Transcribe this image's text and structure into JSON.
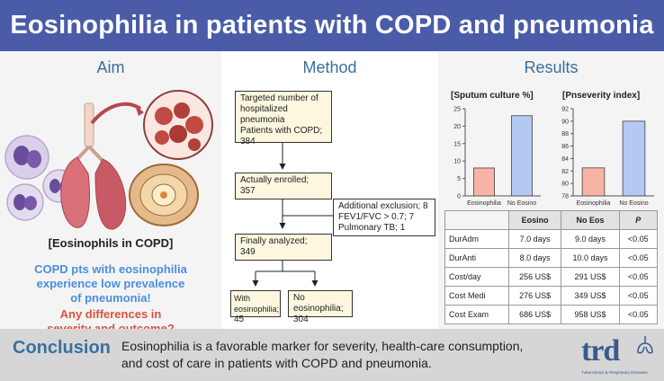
{
  "header": {
    "title": "Eosinophilia in patients with COPD and pneumonia"
  },
  "aim": {
    "title": "Aim",
    "image_label": "[Eosinophils in COPD]",
    "statement": [
      "COPD pts with eosinophilia",
      "experience low prevalence",
      "of pneumonia!"
    ],
    "question": [
      "Any differences in",
      "severity and outcome?"
    ]
  },
  "method": {
    "title": "Method",
    "boxes": {
      "targeted": [
        "Targeted number of",
        "hospitalized pneumonia",
        "Patients with COPD;",
        "384"
      ],
      "enrolled": [
        "Actually enrolled;",
        "357"
      ],
      "exclusion": [
        "Additional exclusion; 8",
        "FEV1/FVC > 0.7; 7",
        "Pulmonary TB; 1"
      ],
      "analyzed": [
        "Finally analyzed;",
        "349"
      ],
      "with_eos": [
        "With eosinophilia;",
        "45"
      ],
      "no_eos": [
        "No eosinophilia;",
        "304"
      ]
    }
  },
  "results": {
    "title": "Results",
    "colors": {
      "eosinophilia": "#f7b3a4",
      "no_eosino": "#b3c8f2"
    }
  },
  "chart_data": [
    {
      "type": "bar",
      "title": "[Sputum culture %]",
      "categories": [
        "Eosinophilia",
        "No Eosino"
      ],
      "values": [
        8,
        23
      ],
      "ylim": [
        0,
        25
      ],
      "yticks": [
        0,
        5,
        10,
        15,
        20,
        25
      ],
      "xlabel": "",
      "ylabel": ""
    },
    {
      "type": "bar",
      "title": "[Pnseverity index]",
      "categories": [
        "Eosinophilia",
        "No Eosino"
      ],
      "values": [
        82.5,
        90
      ],
      "ylim": [
        78,
        92
      ],
      "yticks": [
        78,
        80,
        82,
        84,
        86,
        88,
        90,
        92
      ],
      "xlabel": "",
      "ylabel": ""
    },
    {
      "type": "table",
      "columns": [
        "",
        "Eosino",
        "No Eos",
        "P"
      ],
      "rows": [
        [
          "DurAdm",
          "7.0 days",
          "9.0 days",
          "<0.05"
        ],
        [
          "DurAnti",
          "8.0 days",
          "10.0 days",
          "<0.05"
        ],
        [
          "Cost/day",
          "256 US$",
          "291 US$",
          "<0.05"
        ],
        [
          "Cost Medi",
          "276 US$",
          "349 US$",
          "<0.05"
        ],
        [
          "Cost Exam",
          "686 US$",
          "958 US$",
          "<0.05"
        ]
      ]
    }
  ],
  "conclusion": {
    "label": "Conclusion",
    "text": [
      "Eosinophilia is a favorable marker for severity, health-care consumption,",
      "and cost of care in patients with COPD and pneumonia."
    ]
  },
  "logo": {
    "word": "trd",
    "subtitle": "Tuberculosis & Respiratory Diseases"
  }
}
